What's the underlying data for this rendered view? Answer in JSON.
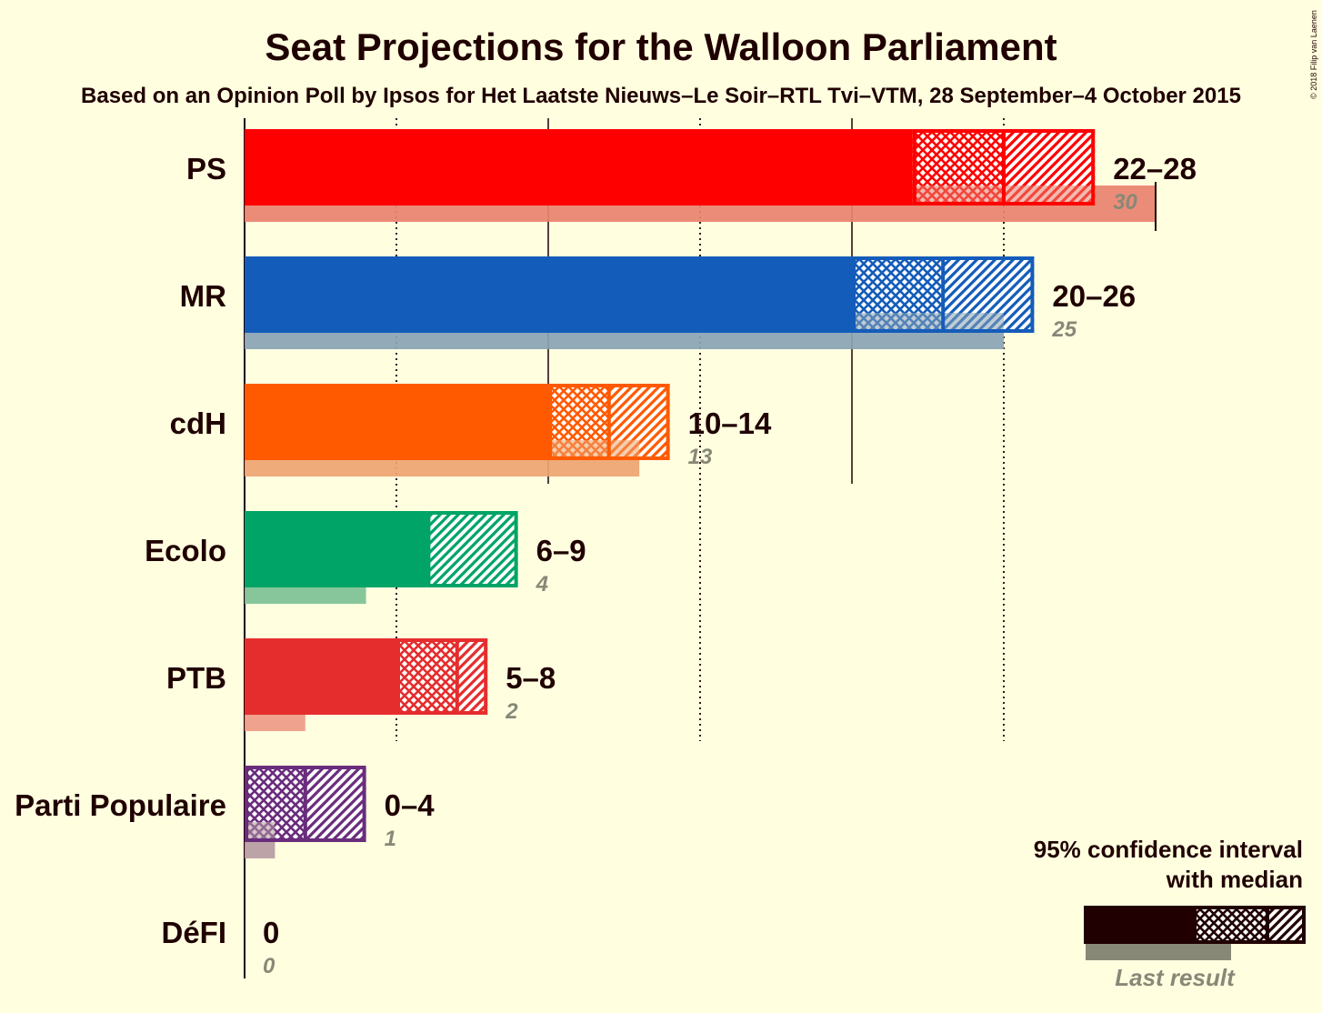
{
  "chart_data": {
    "type": "bar",
    "title": "Seat Projections for the Walloon Parliament",
    "subtitle": "Based on an Opinion Poll by Ipsos for Het Laatste Nieuws–Le Soir–RTL Tvi–VTM, 28 September–4 October 2015",
    "copyright": "© 2018 Filip van Laenen",
    "xlim": [
      0,
      30
    ],
    "gridlines": [
      5,
      10,
      15,
      20,
      25
    ],
    "parties": [
      {
        "name": "PS",
        "low": 22,
        "median": 25,
        "high": 28,
        "range_label": "22–28",
        "last": 30,
        "last_label": "30",
        "color": "#FF0000",
        "last_color": "#E9826F"
      },
      {
        "name": "MR",
        "low": 20,
        "median": 23,
        "high": 26,
        "range_label": "20–26",
        "last": 25,
        "last_label": "25",
        "color": "#145CBA",
        "last_color": "#8AA4B4"
      },
      {
        "name": "cdH",
        "low": 10,
        "median": 12,
        "high": 14,
        "range_label": "10–14",
        "last": 13,
        "last_label": "13",
        "color": "#FF5A00",
        "last_color": "#EEA470"
      },
      {
        "name": "Ecolo",
        "low": 6,
        "median": 6,
        "high": 9,
        "range_label": "6–9",
        "last": 4,
        "last_label": "4",
        "color": "#00A467",
        "last_color": "#7DC194"
      },
      {
        "name": "PTB",
        "low": 5,
        "median": 7,
        "high": 8,
        "range_label": "5–8",
        "last": 2,
        "last_label": "2",
        "color": "#E52D2D",
        "last_color": "#EE9A85"
      },
      {
        "name": "Parti Populaire",
        "low": 0,
        "median": 2,
        "high": 4,
        "range_label": "0–4",
        "last": 1,
        "last_label": "1",
        "color": "#6A2D7D",
        "last_color": "#B59BA2"
      },
      {
        "name": "DéFI",
        "low": 0,
        "median": 0,
        "high": 0,
        "range_label": "0",
        "last": 0,
        "last_label": "0",
        "color": "#DB2C7C",
        "last_color": "#E59CB4"
      }
    ],
    "legend": {
      "line1": "95% confidence interval",
      "line2": "with median",
      "last_result": "Last result",
      "color": "#200000",
      "last_color": "#888877"
    }
  }
}
